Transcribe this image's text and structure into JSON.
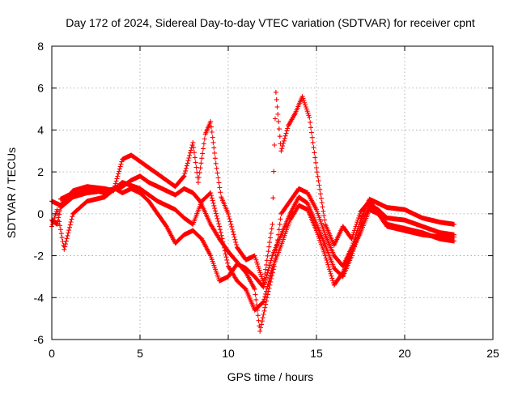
{
  "chart_data": {
    "type": "scatter",
    "title": "Day 172 of 2024, Sidereal Day-to-day VTEC variation (SDTVAR) for receiver cpnt",
    "xlabel": "GPS time / hours",
    "ylabel": "SDTVAR / TECUs",
    "xlim": [
      0,
      25
    ],
    "ylim": [
      -6,
      8
    ],
    "xticks": [
      0,
      5,
      10,
      15,
      20,
      25
    ],
    "yticks": [
      -6,
      -4,
      -2,
      0,
      2,
      4,
      6,
      8
    ],
    "grid": true,
    "marker": "+",
    "series_color": "#ff0000",
    "tracks": [
      [
        [
          0.0,
          -0.3
        ],
        [
          0.3,
          -0.5
        ],
        [
          0.5,
          0.3
        ],
        [
          1.2,
          0.8
        ],
        [
          2.0,
          1.0
        ],
        [
          3.0,
          1.1
        ],
        [
          3.6,
          1.2
        ],
        [
          4.0,
          1.0
        ],
        [
          4.5,
          1.2
        ],
        [
          5.0,
          1.0
        ],
        [
          5.5,
          0.6
        ],
        [
          6.0,
          0.0
        ],
        [
          6.5,
          -0.6
        ],
        [
          7.0,
          -1.4
        ],
        [
          7.5,
          -1.0
        ],
        [
          8.0,
          -0.8
        ],
        [
          8.5,
          -1.2
        ],
        [
          9.0,
          -2.0
        ],
        [
          9.5,
          -3.2
        ],
        [
          10.0,
          -3.0
        ],
        [
          10.5,
          -2.4
        ],
        [
          11.0,
          -2.6
        ],
        [
          11.5,
          -3.0
        ],
        [
          12.0,
          -3.5
        ],
        [
          12.5,
          -2.0
        ],
        [
          13.0,
          -1.0
        ],
        [
          13.5,
          0.0
        ],
        [
          14.0,
          0.8
        ],
        [
          14.5,
          0.5
        ],
        [
          15.0,
          -0.5
        ],
        [
          15.5,
          -1.5
        ],
        [
          16.0,
          -2.6
        ],
        [
          16.5,
          -3.0
        ],
        [
          17.0,
          -2.0
        ],
        [
          17.5,
          -0.6
        ],
        [
          18.0,
          0.4
        ],
        [
          18.5,
          0.2
        ],
        [
          19.0,
          -0.2
        ],
        [
          20.0,
          -0.3
        ],
        [
          21.0,
          -0.6
        ],
        [
          22.0,
          -0.9
        ],
        [
          22.8,
          -1.0
        ]
      ],
      [
        [
          0.5,
          0.7
        ],
        [
          1.2,
          1.0
        ],
        [
          2.0,
          1.2
        ],
        [
          3.0,
          1.0
        ],
        [
          4.0,
          1.3
        ],
        [
          4.5,
          1.6
        ],
        [
          5.0,
          1.8
        ],
        [
          5.5,
          1.5
        ],
        [
          6.0,
          1.3
        ],
        [
          6.5,
          1.1
        ],
        [
          7.0,
          0.9
        ],
        [
          7.5,
          1.2
        ],
        [
          8.0,
          1.0
        ],
        [
          8.4,
          0.6
        ],
        [
          9.0,
          -0.5
        ],
        [
          9.5,
          -1.2
        ],
        [
          10.0,
          -1.8
        ],
        [
          10.5,
          -2.3
        ],
        [
          11.0,
          -2.8
        ],
        [
          11.5,
          -3.6
        ],
        [
          11.8,
          -5.6
        ],
        [
          12.2,
          -4.0
        ],
        [
          12.6,
          -2.5
        ],
        [
          13.0,
          0.0
        ],
        [
          13.5,
          0.6
        ],
        [
          14.0,
          1.2
        ],
        [
          14.5,
          1.0
        ],
        [
          15.0,
          0.2
        ],
        [
          15.5,
          -1.0
        ],
        [
          16.0,
          -2.0
        ],
        [
          16.5,
          -2.5
        ],
        [
          17.0,
          -1.6
        ],
        [
          17.5,
          -0.3
        ],
        [
          18.0,
          0.7
        ],
        [
          18.5,
          0.5
        ],
        [
          19.0,
          0.3
        ],
        [
          20.0,
          0.2
        ],
        [
          21.0,
          -0.2
        ],
        [
          22.0,
          -0.4
        ],
        [
          22.8,
          -0.5
        ]
      ],
      [
        [
          0.0,
          0.6
        ],
        [
          0.5,
          0.4
        ],
        [
          1.2,
          1.1
        ],
        [
          2.0,
          1.3
        ],
        [
          3.0,
          1.2
        ],
        [
          3.5,
          1.1
        ],
        [
          4.0,
          2.6
        ],
        [
          4.5,
          2.8
        ],
        [
          5.0,
          2.5
        ],
        [
          5.5,
          2.2
        ],
        [
          6.0,
          1.9
        ],
        [
          6.5,
          1.6
        ],
        [
          7.0,
          1.3
        ],
        [
          7.5,
          1.8
        ],
        [
          8.0,
          3.4
        ],
        [
          8.3,
          1.5
        ],
        [
          8.7,
          3.8
        ],
        [
          9.0,
          4.4
        ],
        [
          9.3,
          2.4
        ],
        [
          9.6,
          0.8
        ],
        [
          10.0,
          0.0
        ],
        [
          10.5,
          -1.6
        ],
        [
          11.0,
          -2.2
        ],
        [
          11.5,
          -2.0
        ],
        [
          12.0,
          -3.3
        ],
        [
          12.5,
          -0.5
        ],
        [
          12.7,
          5.8
        ],
        [
          13.0,
          3.0
        ],
        [
          13.4,
          4.2
        ],
        [
          13.8,
          4.8
        ],
        [
          14.2,
          5.6
        ],
        [
          14.6,
          4.6
        ],
        [
          15.0,
          2.2
        ],
        [
          15.5,
          -0.5
        ],
        [
          16.0,
          -1.5
        ],
        [
          16.5,
          -0.6
        ],
        [
          17.0,
          -1.2
        ],
        [
          17.5,
          0.1
        ],
        [
          18.0,
          0.6
        ],
        [
          18.5,
          0.1
        ],
        [
          19.0,
          -0.5
        ],
        [
          20.0,
          -0.7
        ],
        [
          21.0,
          -0.9
        ],
        [
          22.0,
          -1.2
        ],
        [
          22.8,
          -1.3
        ]
      ],
      [
        [
          0.0,
          -0.6
        ],
        [
          0.3,
          0.2
        ],
        [
          0.7,
          -1.7
        ],
        [
          1.2,
          0.0
        ],
        [
          2.0,
          0.6
        ],
        [
          3.0,
          0.8
        ],
        [
          4.0,
          1.5
        ],
        [
          5.0,
          1.2
        ],
        [
          6.0,
          0.6
        ],
        [
          7.0,
          0.2
        ],
        [
          7.5,
          -0.2
        ],
        [
          8.0,
          -0.5
        ],
        [
          8.5,
          0.6
        ],
        [
          9.0,
          1.0
        ],
        [
          9.5,
          -0.6
        ],
        [
          10.0,
          -2.5
        ],
        [
          10.5,
          -3.2
        ],
        [
          11.0,
          -3.6
        ],
        [
          11.5,
          -4.6
        ],
        [
          12.0,
          -4.2
        ],
        [
          12.5,
          -2.6
        ],
        [
          13.0,
          -1.5
        ],
        [
          13.5,
          -0.3
        ],
        [
          14.0,
          0.4
        ],
        [
          14.5,
          0.2
        ],
        [
          15.0,
          -0.8
        ],
        [
          15.5,
          -2.0
        ],
        [
          16.0,
          -3.4
        ],
        [
          16.5,
          -2.8
        ],
        [
          17.0,
          -1.8
        ],
        [
          17.5,
          -0.9
        ],
        [
          18.0,
          0.2
        ],
        [
          18.5,
          0.0
        ],
        [
          19.0,
          -0.6
        ],
        [
          20.0,
          -0.8
        ],
        [
          21.0,
          -1.0
        ],
        [
          22.0,
          -1.1
        ],
        [
          22.8,
          -1.1
        ]
      ]
    ]
  }
}
